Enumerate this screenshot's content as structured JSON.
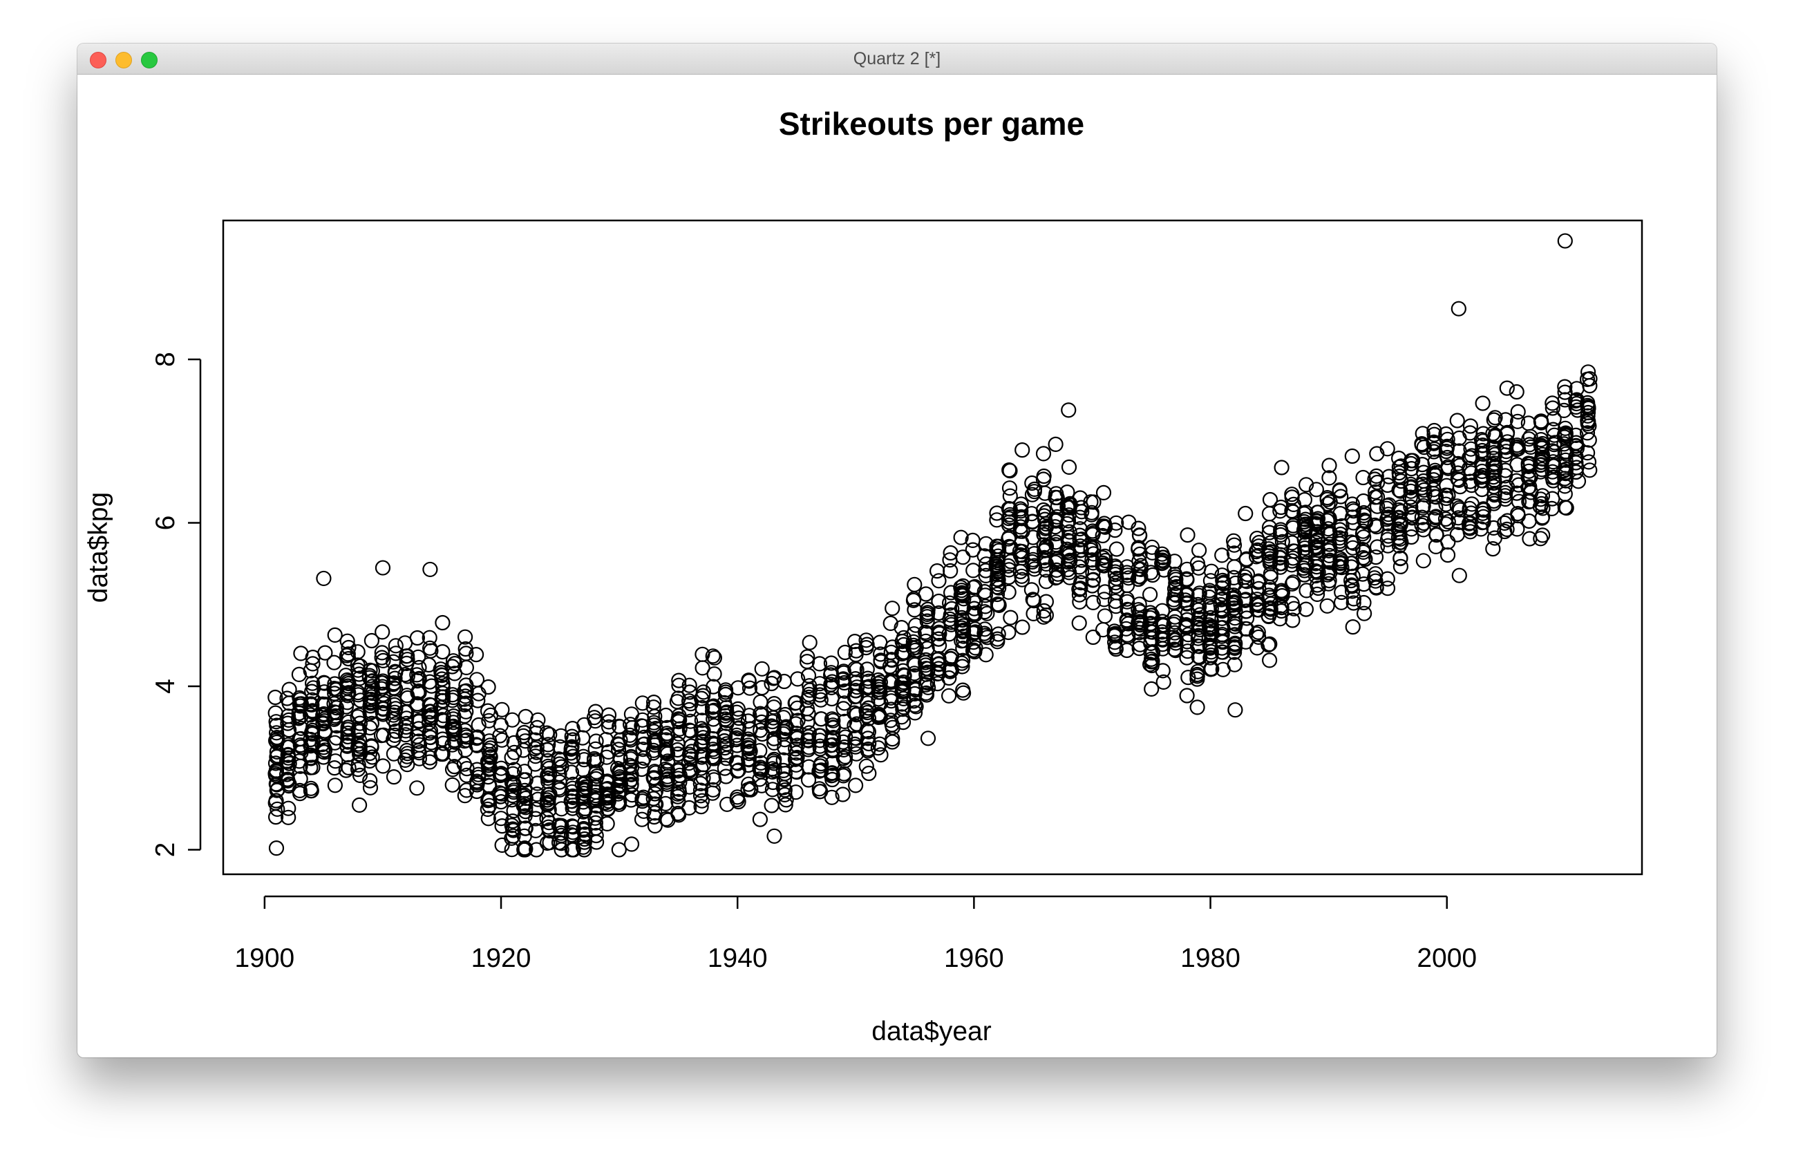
{
  "window": {
    "title": "Quartz 2 [*]"
  },
  "chart_data": {
    "type": "scatter",
    "title": "Strikeouts per game",
    "xlabel": "data$year",
    "ylabel": "data$kpg",
    "xlim": [
      1896.5,
      2016.5
    ],
    "ylim": [
      1.7,
      9.7
    ],
    "x_ticks": [
      1900,
      1920,
      1940,
      1960,
      1980,
      2000
    ],
    "y_ticks": [
      2,
      4,
      6,
      8
    ],
    "x_tick_labels": [
      "1900",
      "1920",
      "1940",
      "1960",
      "1980",
      "2000"
    ],
    "y_tick_labels": [
      "2",
      "4",
      "6",
      "8"
    ],
    "grid": false,
    "legend": "none",
    "marker": "open-circle",
    "marker_color": "#000000",
    "years": [
      1901,
      2012
    ],
    "team_count_per_year": 16,
    "trend_anchors": {
      "year": [
        1901,
        1903,
        1905,
        1908,
        1911,
        1914,
        1917,
        1919,
        1921,
        1923,
        1925,
        1927,
        1929,
        1931,
        1935,
        1938,
        1941,
        1944,
        1946,
        1948,
        1950,
        1953,
        1955,
        1957,
        1960,
        1963,
        1965,
        1967,
        1970,
        1972,
        1975,
        1978,
        1980,
        1983,
        1986,
        1988,
        1990,
        1993,
        1996,
        1999,
        2002,
        2005,
        2008,
        2012
      ],
      "kpg": [
        3.0,
        3.4,
        3.6,
        3.7,
        3.8,
        3.8,
        3.6,
        3.0,
        2.7,
        2.8,
        2.6,
        2.6,
        2.8,
        3.0,
        3.2,
        3.3,
        3.4,
        3.2,
        3.6,
        3.5,
        3.7,
        4.0,
        4.3,
        4.6,
        5.0,
        5.6,
        5.8,
        5.9,
        5.6,
        5.3,
        5.0,
        4.9,
        4.7,
        5.0,
        5.5,
        5.7,
        5.8,
        5.8,
        6.2,
        6.4,
        6.5,
        6.6,
        6.6,
        7.3
      ]
    },
    "notable_points": [
      {
        "x": 2010,
        "y": 9.45
      },
      {
        "x": 2001,
        "y": 8.62
      },
      {
        "x": 1905,
        "y": 5.32
      },
      {
        "x": 1910,
        "y": 5.45
      },
      {
        "x": 1914,
        "y": 5.43
      },
      {
        "x": 1968,
        "y": 7.38
      },
      {
        "x": 1922,
        "y": 2.02
      },
      {
        "x": 1901,
        "y": 2.02
      }
    ]
  }
}
